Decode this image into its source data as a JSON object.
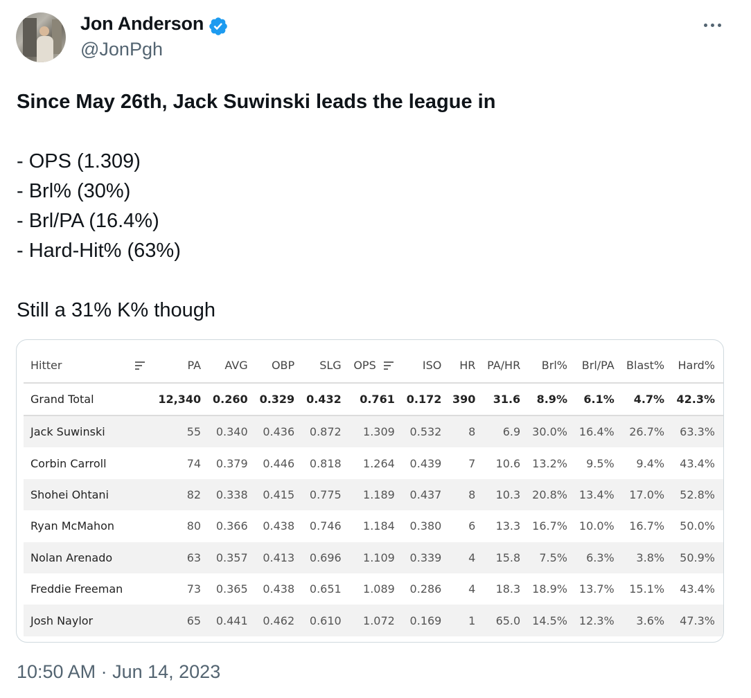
{
  "author": {
    "name": "Jon Anderson",
    "handle": "@JonPgh",
    "verified_color": "#1d9bf0"
  },
  "tweet": {
    "headline": "Since May 26th, Jack Suwinski leads the league in",
    "bullets": [
      "- OPS (1.309)",
      "- Brl% (30%)",
      "- Brl/PA (16.4%)",
      "- Hard-Hit% (63%)"
    ],
    "footer_line": "Still a 31% K% though"
  },
  "table": {
    "columns": [
      "Hitter",
      "PA",
      "AVG",
      "OBP",
      "SLG",
      "OPS",
      "ISO",
      "HR",
      "PA/HR",
      "Brl%",
      "Brl/PA",
      "Blast%",
      "Hard%"
    ],
    "total": [
      "Grand Total",
      "12,340",
      "0.260",
      "0.329",
      "0.432",
      "0.761",
      "0.172",
      "390",
      "31.6",
      "8.9%",
      "6.1%",
      "4.7%",
      "42.3%"
    ],
    "rows": [
      [
        "Jack Suwinski",
        "55",
        "0.340",
        "0.436",
        "0.872",
        "1.309",
        "0.532",
        "8",
        "6.9",
        "30.0%",
        "16.4%",
        "26.7%",
        "63.3%"
      ],
      [
        "Corbin Carroll",
        "74",
        "0.379",
        "0.446",
        "0.818",
        "1.264",
        "0.439",
        "7",
        "10.6",
        "13.2%",
        "9.5%",
        "9.4%",
        "43.4%"
      ],
      [
        "Shohei Ohtani",
        "82",
        "0.338",
        "0.415",
        "0.775",
        "1.189",
        "0.437",
        "8",
        "10.3",
        "20.8%",
        "13.4%",
        "17.0%",
        "52.8%"
      ],
      [
        "Ryan McMahon",
        "80",
        "0.366",
        "0.438",
        "0.746",
        "1.184",
        "0.380",
        "6",
        "13.3",
        "16.7%",
        "10.0%",
        "16.7%",
        "50.0%"
      ],
      [
        "Nolan Arenado",
        "63",
        "0.357",
        "0.413",
        "0.696",
        "1.109",
        "0.339",
        "4",
        "15.8",
        "7.5%",
        "6.3%",
        "3.8%",
        "50.9%"
      ],
      [
        "Freddie Freeman",
        "73",
        "0.365",
        "0.438",
        "0.651",
        "1.089",
        "0.286",
        "4",
        "18.3",
        "18.9%",
        "13.7%",
        "15.1%",
        "43.4%"
      ],
      [
        "Josh Naylor",
        "65",
        "0.441",
        "0.462",
        "0.610",
        "1.072",
        "0.169",
        "1",
        "65.0",
        "14.5%",
        "12.3%",
        "3.6%",
        "47.3%"
      ]
    ]
  },
  "timestamp": "10:50 AM · Jun 14, 2023",
  "icons": {
    "more": "more-horizontal-icon",
    "verified": "verified-badge-icon",
    "sort": "sort-icon"
  }
}
